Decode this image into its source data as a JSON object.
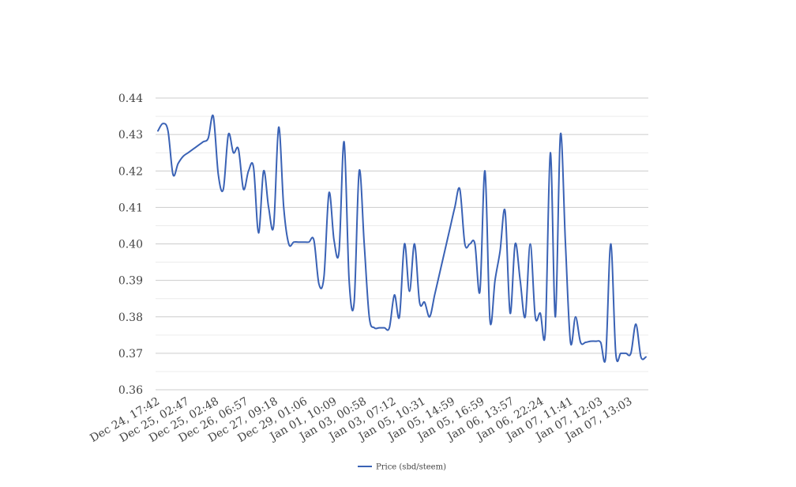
{
  "chart_data": {
    "type": "line",
    "title": "",
    "xlabel": "",
    "ylabel": "",
    "ylim": [
      0.36,
      0.44
    ],
    "y_ticks": [
      "0.36",
      "0.37",
      "0.38",
      "0.39",
      "0.40",
      "0.41",
      "0.42",
      "0.43",
      "0.44"
    ],
    "x_tick_labels": [
      "Dec 24, 17:42",
      "Dec 25, 02:47",
      "Dec 25, 02:48",
      "Dec 26, 06:57",
      "Dec 27, 09:18",
      "Dec 29, 01:06",
      "Jan 01, 10:09",
      "Jan 03, 00:58",
      "Jan 03, 07:12",
      "Jan 05, 10:31",
      "Jan 05, 14:59",
      "Jan 05, 16:59",
      "Jan 06, 13:57",
      "Jan 06, 22:24",
      "Jan 07, 11:41",
      "Jan 07, 12:03",
      "Jan 07, 13:03"
    ],
    "grid": true,
    "legend_position": "bottom-center",
    "series": [
      {
        "name": "Price (sbd/steem)",
        "color": "#3a62b5",
        "values": [
          0.431,
          0.433,
          0.431,
          0.419,
          0.422,
          0.424,
          0.425,
          0.426,
          0.427,
          0.428,
          0.429,
          0.435,
          0.419,
          0.415,
          0.43,
          0.425,
          0.426,
          0.415,
          0.42,
          0.421,
          0.403,
          0.42,
          0.41,
          0.405,
          0.432,
          0.41,
          0.4,
          0.4005,
          0.4005,
          0.4005,
          0.4005,
          0.401,
          0.389,
          0.391,
          0.414,
          0.401,
          0.398,
          0.428,
          0.39,
          0.384,
          0.42,
          0.4,
          0.38,
          0.377,
          0.377,
          0.377,
          0.377,
          0.386,
          0.38,
          0.4,
          0.387,
          0.4,
          0.384,
          0.384,
          0.38,
          0.386,
          0.392,
          0.398,
          0.404,
          0.41,
          0.415,
          0.4,
          0.4,
          0.4,
          0.387,
          0.42,
          0.379,
          0.39,
          0.398,
          0.409,
          0.381,
          0.4,
          0.39,
          0.38,
          0.4,
          0.38,
          0.381,
          0.376,
          0.425,
          0.38,
          0.43,
          0.4,
          0.373,
          0.38,
          0.373,
          0.373,
          0.3733,
          0.3733,
          0.373,
          0.369,
          0.4,
          0.37,
          0.37,
          0.37,
          0.37,
          0.378,
          0.369,
          0.369
        ]
      }
    ]
  }
}
